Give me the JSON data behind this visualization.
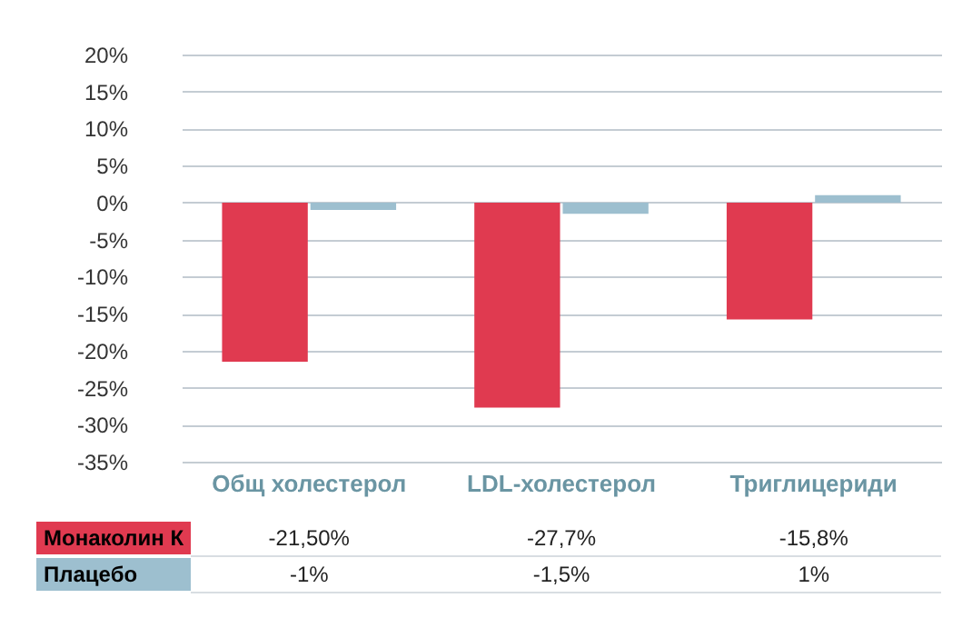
{
  "chart_data": {
    "type": "bar",
    "categories": [
      "Общ холестерол",
      "LDL-холестерол",
      "Триглицериди"
    ],
    "series": [
      {
        "name": "Монаколин К",
        "color": "#e03a50",
        "values": [
          -21.5,
          -27.7,
          -15.8
        ],
        "value_labels": [
          "-21,50%",
          "-27,7%",
          "-15,8%"
        ]
      },
      {
        "name": "Плацебо",
        "color": "#9dbfcf",
        "values": [
          -1,
          -1.5,
          1
        ],
        "value_labels": [
          "-1%",
          "-1,5%",
          "1%"
        ]
      }
    ],
    "ylim": [
      -35,
      20
    ],
    "yticks": [
      {
        "value": 20,
        "label": "20%"
      },
      {
        "value": 15,
        "label": "15%"
      },
      {
        "value": 10,
        "label": "10%"
      },
      {
        "value": 5,
        "label": "5%"
      },
      {
        "value": 0,
        "label": "0%"
      },
      {
        "value": -5,
        "label": "-5%"
      },
      {
        "value": -10,
        "label": "-10%"
      },
      {
        "value": -15,
        "label": "-15%"
      },
      {
        "value": -20,
        "label": "-20%"
      },
      {
        "value": -25,
        "label": "-25%"
      },
      {
        "value": -30,
        "label": "-30%"
      },
      {
        "value": -35,
        "label": "-35%"
      }
    ],
    "grid": "y",
    "legend": "bottom"
  }
}
